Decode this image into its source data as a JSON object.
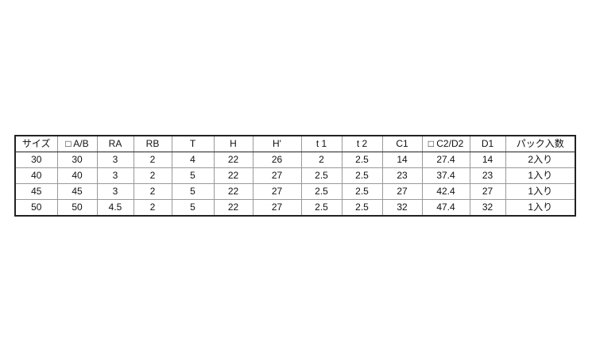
{
  "table": {
    "headers": [
      "サイズ",
      "□ A/B",
      "RA",
      "RB",
      "T",
      "H",
      "H'",
      "t 1",
      "t 2",
      "C1",
      "□ C2/D2",
      "D1",
      "パック入数"
    ],
    "rows": [
      [
        "30",
        "30",
        "3",
        "2",
        "4",
        "22",
        "26",
        "2",
        "2.5",
        "14",
        "27.4",
        "14",
        "2入り"
      ],
      [
        "40",
        "40",
        "3",
        "2",
        "5",
        "22",
        "27",
        "2.5",
        "2.5",
        "23",
        "37.4",
        "23",
        "1入り"
      ],
      [
        "45",
        "45",
        "3",
        "2",
        "5",
        "22",
        "27",
        "2.5",
        "2.5",
        "27",
        "42.4",
        "27",
        "1入り"
      ],
      [
        "50",
        "50",
        "4.5",
        "2",
        "5",
        "22",
        "27",
        "2.5",
        "2.5",
        "32",
        "47.4",
        "32",
        "1入り"
      ]
    ]
  }
}
